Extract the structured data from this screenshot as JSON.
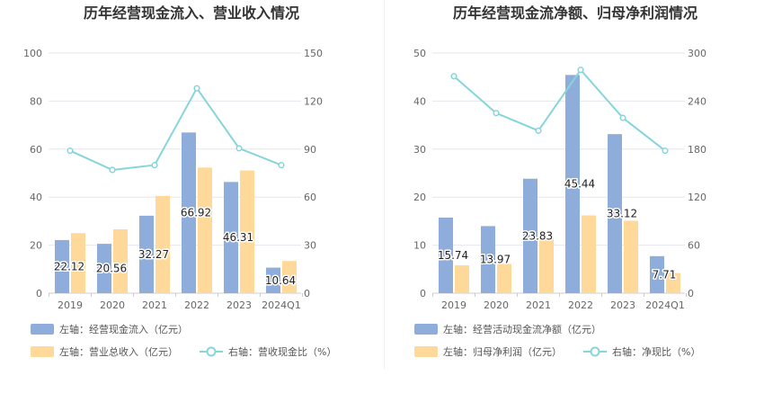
{
  "chart_data": [
    {
      "type": "bar",
      "title": "历年经营现金流入、营业收入情况",
      "categories": [
        "2019",
        "2020",
        "2021",
        "2022",
        "2023",
        "2024Q1"
      ],
      "y_left": {
        "min": 0,
        "max": 100,
        "ticks": [
          "0",
          "20",
          "40",
          "60",
          "80",
          "100"
        ]
      },
      "y_right": {
        "min": 0,
        "max": 150,
        "ticks": [
          "0",
          "30",
          "60",
          "90",
          "120",
          "150"
        ]
      },
      "series": [
        {
          "name": "左轴：经营现金流入（亿元）",
          "type": "bar",
          "axis": "left",
          "color": "#8EADDB",
          "values": [
            22.12,
            20.56,
            32.27,
            66.92,
            46.31,
            10.64
          ],
          "labels": [
            "22.12",
            "20.56",
            "32.27",
            "66.92",
            "46.31",
            "10.64"
          ]
        },
        {
          "name": "左轴：营业总收入（亿元）",
          "type": "bar",
          "axis": "left",
          "color": "#FFD99A",
          "values": [
            25.0,
            26.6,
            40.5,
            52.3,
            51.1,
            13.4
          ]
        },
        {
          "name": "右轴：营收现金比（%）",
          "type": "line",
          "axis": "right",
          "color": "#86D5DB",
          "values": [
            89,
            77,
            80,
            128,
            90.5,
            80
          ]
        }
      ]
    },
    {
      "type": "bar",
      "title": "历年经营现金流净额、归母净利润情况",
      "categories": [
        "2019",
        "2020",
        "2021",
        "2022",
        "2023",
        "2024Q1"
      ],
      "y_left": {
        "min": 0,
        "max": 50,
        "ticks": [
          "0",
          "10",
          "20",
          "30",
          "40",
          "50"
        ]
      },
      "y_right": {
        "min": 0,
        "max": 300,
        "ticks": [
          "0",
          "60",
          "120",
          "180",
          "240",
          "300"
        ]
      },
      "series": [
        {
          "name": "左轴：经营活动现金流净额（亿元）",
          "type": "bar",
          "axis": "left",
          "color": "#8EADDB",
          "values": [
            15.74,
            13.97,
            23.83,
            45.44,
            33.12,
            7.71
          ],
          "labels": [
            "15.74",
            "13.97",
            "23.83",
            "45.44",
            "33.12",
            "7.71"
          ]
        },
        {
          "name": "左轴：归母净利润（亿元）",
          "type": "bar",
          "axis": "left",
          "color": "#FFD99A",
          "values": [
            5.8,
            6.1,
            11.6,
            16.2,
            15.1,
            4.2
          ]
        },
        {
          "name": "右轴：净现比（%）",
          "type": "line",
          "axis": "right",
          "color": "#86D5DB",
          "values": [
            271,
            225,
            203,
            279,
            219,
            178
          ]
        }
      ]
    }
  ]
}
